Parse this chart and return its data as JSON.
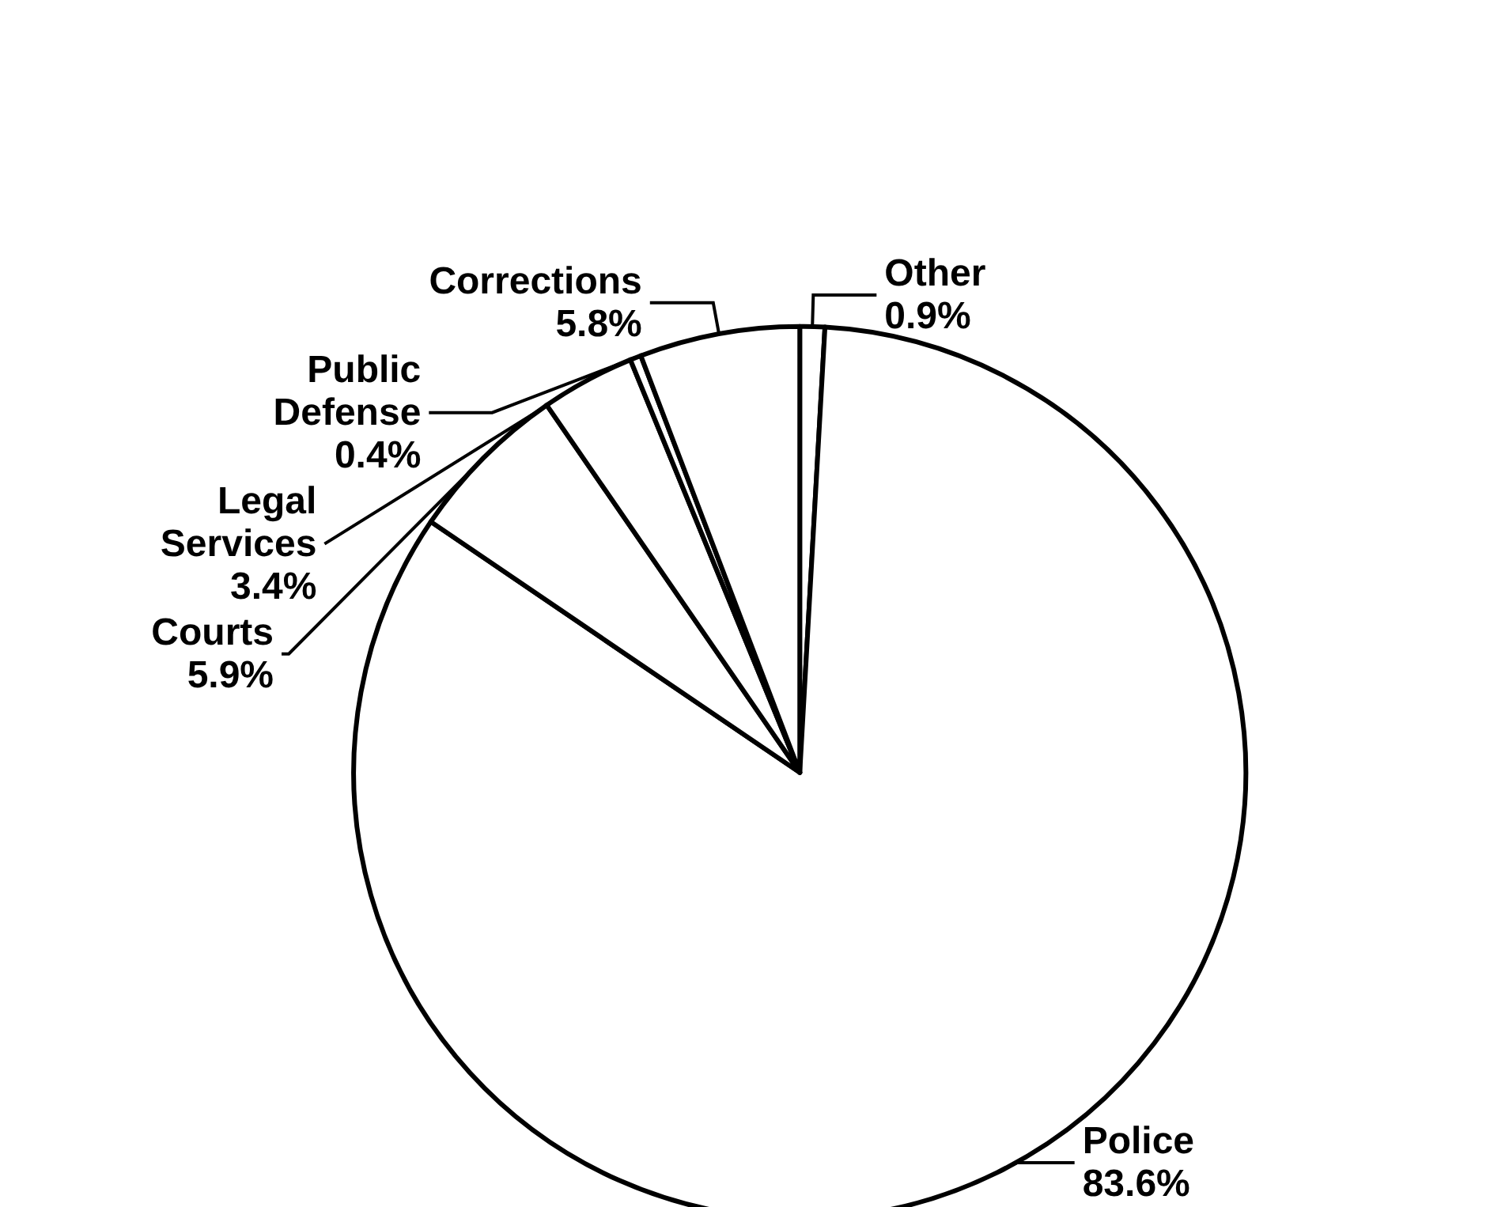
{
  "chart_data": {
    "type": "pie",
    "categories": [
      "Other",
      "Police",
      "Courts",
      "Legal Services",
      "Public Defense",
      "Corrections"
    ],
    "values": [
      0.9,
      83.6,
      5.9,
      3.4,
      0.4,
      5.8
    ],
    "value_labels": [
      "0.9%",
      "83.6%",
      "5.9%",
      "3.4%",
      "0.4%",
      "5.8%"
    ],
    "colors": [
      "#ffffff",
      "#ffffff",
      "#ffffff",
      "#ffffff",
      "#ffffff",
      "#ffffff"
    ]
  }
}
